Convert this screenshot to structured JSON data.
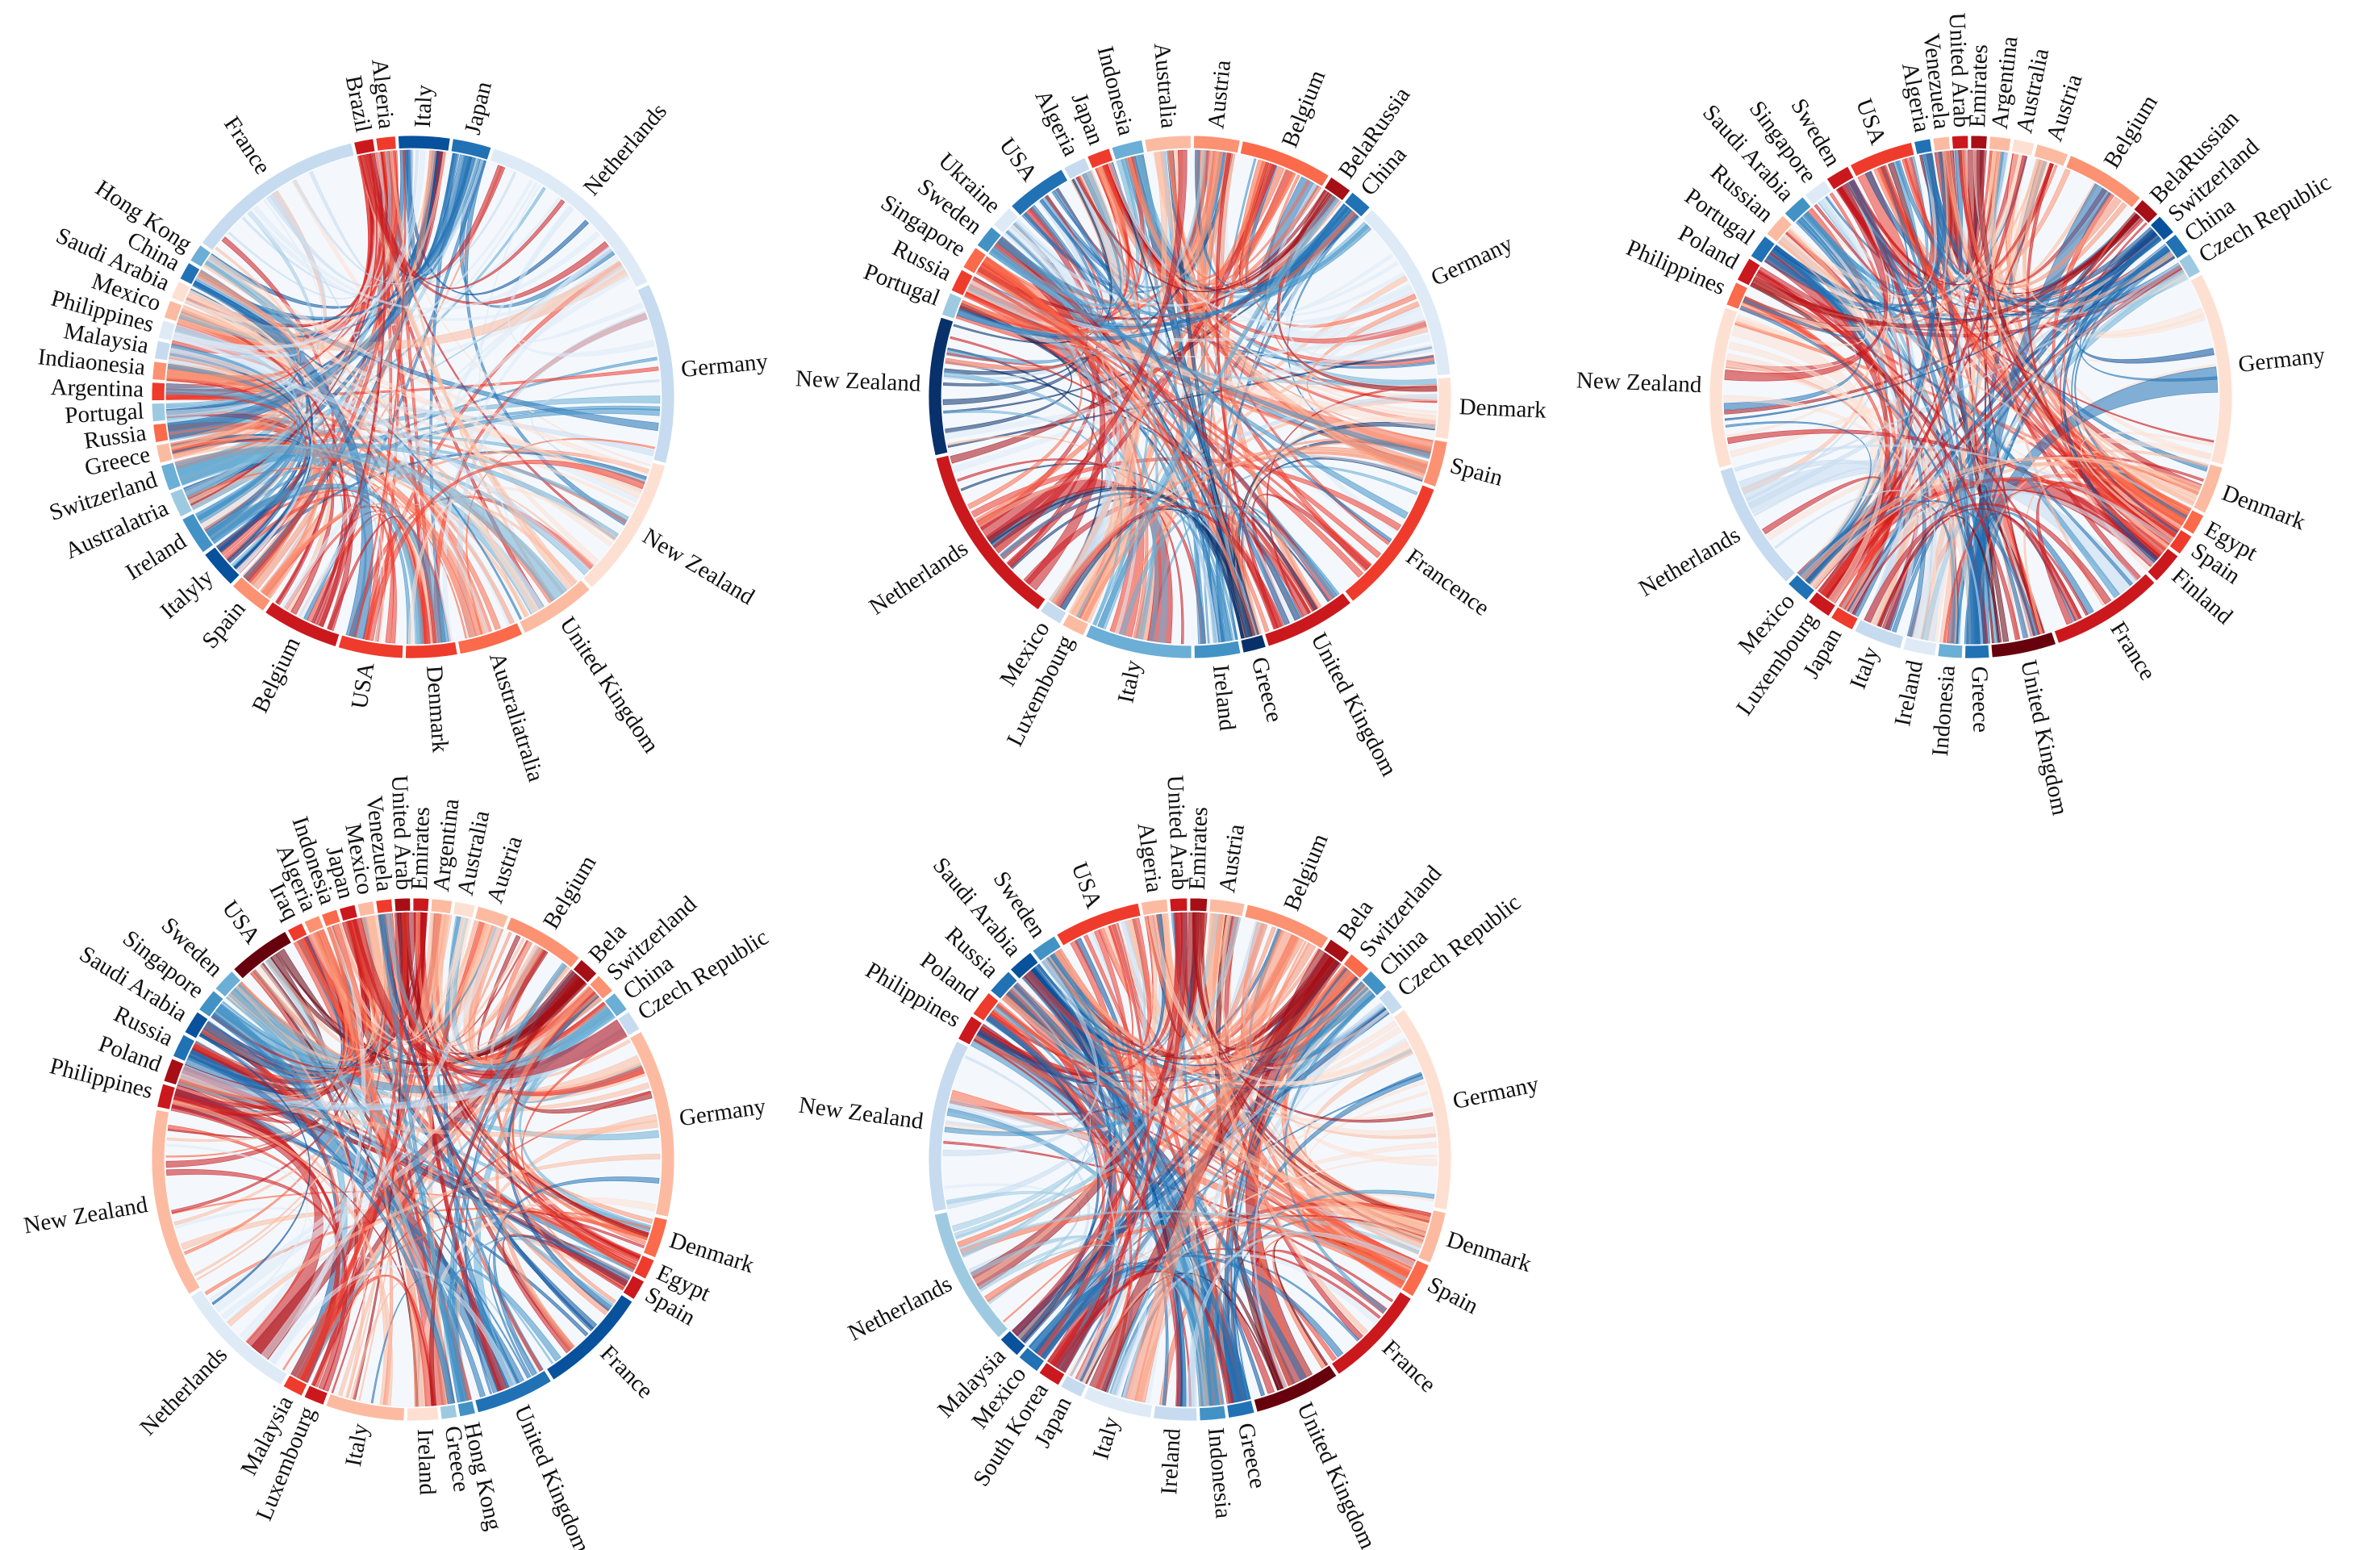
{
  "palette": {
    "blues": [
      "#08306b",
      "#08519c",
      "#2171b5",
      "#4292c6",
      "#6baed6",
      "#9ecae1",
      "#c6dbef",
      "#deebf7"
    ],
    "reds": [
      "#67000d",
      "#a50f15",
      "#cb181d",
      "#ef3b2c",
      "#fb6a4a",
      "#fc9272",
      "#fcbba1",
      "#fee0d2"
    ]
  },
  "diagrams": [
    {
      "name": "chord-diagram-1",
      "sectors": [
        {
          "label": "Netherlands",
          "size": 16,
          "color": "#deebf7"
        },
        {
          "label": "Germany",
          "size": 14,
          "color": "#c6dbef"
        },
        {
          "label": "New Zealand",
          "size": 11,
          "color": "#fee0d2"
        },
        {
          "label": "United Kingdom",
          "size": 6,
          "color": "#fcbba1"
        },
        {
          "label": "Australiatralia",
          "size": 5,
          "color": "#fb6a4a"
        },
        {
          "label": "Denmark",
          "size": 4,
          "color": "#ef3b2c"
        },
        {
          "label": "USA",
          "size": 5,
          "color": "#ef3b2c"
        },
        {
          "label": "Belgium",
          "size": 6,
          "color": "#cb181d"
        },
        {
          "label": "Spain",
          "size": 3,
          "color": "#fc9272"
        },
        {
          "label": "Italyly",
          "size": 3,
          "color": "#08519c"
        },
        {
          "label": "Ireland",
          "size": 3,
          "color": "#4292c6"
        },
        {
          "label": "Australatria",
          "size": 2,
          "color": "#9ecae1"
        },
        {
          "label": "Switzerland",
          "size": 2,
          "color": "#6baed6"
        },
        {
          "label": "Greece",
          "size": 1.4,
          "color": "#fcbba1"
        },
        {
          "label": "Russia",
          "size": 1.4,
          "color": "#fb6a4a"
        },
        {
          "label": "Portugal",
          "size": 1.4,
          "color": "#9ecae1"
        },
        {
          "label": "Argentina",
          "size": 1.4,
          "color": "#ef3b2c"
        },
        {
          "label": "Indiaonesia",
          "size": 1.4,
          "color": "#fc9272"
        },
        {
          "label": "Malaysia",
          "size": 1.4,
          "color": "#c6dbef"
        },
        {
          "label": "Philippines",
          "size": 1.4,
          "color": "#deebf7"
        },
        {
          "label": "Mexico",
          "size": 1.4,
          "color": "#fcbba1"
        },
        {
          "label": "Saudi Arabia",
          "size": 1.4,
          "color": "#fee0d2"
        },
        {
          "label": "China",
          "size": 1.4,
          "color": "#2171b5"
        },
        {
          "label": "Hong Kong",
          "size": 1.4,
          "color": "#6baed6"
        },
        {
          "label": "France",
          "size": 14,
          "color": "#c6dbef"
        },
        {
          "label": "Brazil",
          "size": 1.5,
          "color": "#cb181d"
        },
        {
          "label": "Algeria",
          "size": 1.5,
          "color": "#ef3b2c"
        },
        {
          "label": "Italy",
          "size": 4,
          "color": "#08519c"
        },
        {
          "label": "Japan",
          "size": 3,
          "color": "#2171b5"
        }
      ]
    },
    {
      "name": "chord-diagram-2",
      "sectors": [
        {
          "label": "Australia",
          "size": 3,
          "color": "#fcbba1"
        },
        {
          "label": "Austria",
          "size": 3,
          "color": "#fc9272"
        },
        {
          "label": "Belgium",
          "size": 6,
          "color": "#fb6a4a"
        },
        {
          "label": "BelaRussia",
          "size": 1.5,
          "color": "#a50f15"
        },
        {
          "label": "China",
          "size": 1.5,
          "color": "#2171b5"
        },
        {
          "label": "Germany",
          "size": 12,
          "color": "#deebf7"
        },
        {
          "label": "Denmark",
          "size": 4,
          "color": "#fee0d2"
        },
        {
          "label": "Spain",
          "size": 3,
          "color": "#fc9272"
        },
        {
          "label": "Francence",
          "size": 9,
          "color": "#ef3b2c"
        },
        {
          "label": "United Kingdom",
          "size": 6,
          "color": "#cb181d"
        },
        {
          "label": "Greece",
          "size": 1.5,
          "color": "#08306b"
        },
        {
          "label": "Ireland",
          "size": 3,
          "color": "#4292c6"
        },
        {
          "label": "Italy",
          "size": 7,
          "color": "#6baed6"
        },
        {
          "label": "Luxembourg",
          "size": 1.5,
          "color": "#fcbba1"
        },
        {
          "label": "Mexico",
          "size": 1.5,
          "color": "#c6dbef"
        },
        {
          "label": "Netherlands",
          "size": 12,
          "color": "#cb181d"
        },
        {
          "label": "New Zealand",
          "size": 9,
          "color": "#08306b"
        },
        {
          "label": "Portugal",
          "size": 1.5,
          "color": "#9ecae1"
        },
        {
          "label": "Russia",
          "size": 1.5,
          "color": "#ef3b2c"
        },
        {
          "label": "Singapore",
          "size": 1.5,
          "color": "#fb6a4a"
        },
        {
          "label": "Sweden",
          "size": 1.5,
          "color": "#4292c6"
        },
        {
          "label": "Ukraine",
          "size": 1.5,
          "color": "#deebf7"
        },
        {
          "label": "USA",
          "size": 4,
          "color": "#2171b5"
        },
        {
          "label": "Algeria",
          "size": 1.5,
          "color": "#c6dbef"
        },
        {
          "label": "Japan",
          "size": 1.5,
          "color": "#ef3b2c"
        },
        {
          "label": "Indonesia",
          "size": 2,
          "color": "#6baed6"
        }
      ]
    },
    {
      "name": "chord-diagram-3",
      "sectors": [
        {
          "label": "Emirates",
          "size": 1,
          "color": "#a50f15"
        },
        {
          "label": "Argentina",
          "size": 1.3,
          "color": "#fcbba1"
        },
        {
          "label": "Australia",
          "size": 1.3,
          "color": "#fee0d2"
        },
        {
          "label": "Austria",
          "size": 2,
          "color": "#fcbba1"
        },
        {
          "label": "Belgium",
          "size": 5,
          "color": "#fc9272"
        },
        {
          "label": "BelaRussian",
          "size": 1.3,
          "color": "#a50f15"
        },
        {
          "label": "Switzerland",
          "size": 1.3,
          "color": "#08519c"
        },
        {
          "label": "China",
          "size": 1.3,
          "color": "#2171b5"
        },
        {
          "label": "Czech Republic",
          "size": 1.3,
          "color": "#9ecae1"
        },
        {
          "label": "Germany",
          "size": 12,
          "color": "#fee0d2"
        },
        {
          "label": "Denmark",
          "size": 3,
          "color": "#fcbba1"
        },
        {
          "label": "Egypt",
          "size": 1.3,
          "color": "#fb6a4a"
        },
        {
          "label": "Spain",
          "size": 1.3,
          "color": "#ef3b2c"
        },
        {
          "label": "Finland",
          "size": 2,
          "color": "#cb181d"
        },
        {
          "label": "France",
          "size": 7,
          "color": "#cb181d"
        },
        {
          "label": "United Kingdom",
          "size": 4,
          "color": "#67000d"
        },
        {
          "label": "Greece",
          "size": 1.5,
          "color": "#2171b5"
        },
        {
          "label": "Indonesia",
          "size": 1.5,
          "color": "#6baed6"
        },
        {
          "label": "Ireland",
          "size": 2,
          "color": "#deebf7"
        },
        {
          "label": "Italy",
          "size": 3,
          "color": "#c6dbef"
        },
        {
          "label": "Japan",
          "size": 1.5,
          "color": "#ef3b2c"
        },
        {
          "label": "Luxembourg",
          "size": 1.5,
          "color": "#cb181d"
        },
        {
          "label": "Mexico",
          "size": 1.5,
          "color": "#2171b5"
        },
        {
          "label": "Netherlands",
          "size": 8,
          "color": "#c6dbef"
        },
        {
          "label": "New Zealand",
          "size": 10,
          "color": "#fee0d2"
        },
        {
          "label": "Philippines",
          "size": 1.5,
          "color": "#fb6a4a"
        },
        {
          "label": "Poland",
          "size": 1.5,
          "color": "#cb181d"
        },
        {
          "label": "Portugal",
          "size": 1.5,
          "color": "#2171b5"
        },
        {
          "label": "Russian",
          "size": 1.5,
          "color": "#fcbba1"
        },
        {
          "label": "Saudi Arabia",
          "size": 1.5,
          "color": "#4292c6"
        },
        {
          "label": "Singapore",
          "size": 1.5,
          "color": "#deebf7"
        },
        {
          "label": "Sweden",
          "size": 1.5,
          "color": "#cb181d"
        },
        {
          "label": "USA",
          "size": 4,
          "color": "#ef3b2c"
        },
        {
          "label": "Algeria",
          "size": 1,
          "color": "#2171b5"
        },
        {
          "label": "Venezuela",
          "size": 1,
          "color": "#fcbba1"
        },
        {
          "label": "United Arab",
          "size": 1,
          "color": "#cb181d"
        }
      ]
    },
    {
      "name": "chord-diagram-4",
      "sectors": [
        {
          "label": "Emirates",
          "size": 1,
          "color": "#cb181d"
        },
        {
          "label": "Argentina",
          "size": 1.3,
          "color": "#fcbba1"
        },
        {
          "label": "Australia",
          "size": 1.3,
          "color": "#fee0d2"
        },
        {
          "label": "Austria",
          "size": 2,
          "color": "#fcbba1"
        },
        {
          "label": "Belgium",
          "size": 5,
          "color": "#fc9272"
        },
        {
          "label": "Bela",
          "size": 1.3,
          "color": "#a50f15"
        },
        {
          "label": "Switzerland",
          "size": 1.3,
          "color": "#fc9272"
        },
        {
          "label": "China",
          "size": 1.3,
          "color": "#6baed6"
        },
        {
          "label": "Czech Republic",
          "size": 1.3,
          "color": "#c6dbef"
        },
        {
          "label": "Germany",
          "size": 12,
          "color": "#fcbba1"
        },
        {
          "label": "Denmark",
          "size": 2.5,
          "color": "#fb6a4a"
        },
        {
          "label": "Egypt",
          "size": 1.3,
          "color": "#ef3b2c"
        },
        {
          "label": "Spain",
          "size": 1.3,
          "color": "#cb181d"
        },
        {
          "label": "France",
          "size": 7,
          "color": "#08519c"
        },
        {
          "label": "United Kingdom",
          "size": 5,
          "color": "#2171b5"
        },
        {
          "label": "Hong Kong",
          "size": 1,
          "color": "#4292c6"
        },
        {
          "label": "Greece",
          "size": 1,
          "color": "#9ecae1"
        },
        {
          "label": "Ireland",
          "size": 2,
          "color": "#fee0d2"
        },
        {
          "label": "Italy",
          "size": 5,
          "color": "#fcbba1"
        },
        {
          "label": "Luxembourg",
          "size": 1.3,
          "color": "#cb181d"
        },
        {
          "label": "Malaysia",
          "size": 1.3,
          "color": "#ef3b2c"
        },
        {
          "label": "Netherlands",
          "size": 8,
          "color": "#deebf7"
        },
        {
          "label": "New Zealand",
          "size": 12,
          "color": "#fcbba1"
        },
        {
          "label": "Philippines",
          "size": 1.5,
          "color": "#cb181d"
        },
        {
          "label": "Poland",
          "size": 1.5,
          "color": "#a50f15"
        },
        {
          "label": "Russia",
          "size": 1.5,
          "color": "#2171b5"
        },
        {
          "label": "Saudi Arabia",
          "size": 1.5,
          "color": "#08519c"
        },
        {
          "label": "Singapore",
          "size": 1.5,
          "color": "#4292c6"
        },
        {
          "label": "Sweden",
          "size": 1.5,
          "color": "#6baed6"
        },
        {
          "label": "USA",
          "size": 4,
          "color": "#67000d"
        },
        {
          "label": "Iraq",
          "size": 1,
          "color": "#ef3b2c"
        },
        {
          "label": "Algeria",
          "size": 1,
          "color": "#fc9272"
        },
        {
          "label": "Indonesia",
          "size": 1,
          "color": "#fb6a4a"
        },
        {
          "label": "Japan",
          "size": 1,
          "color": "#cb181d"
        },
        {
          "label": "Mexico",
          "size": 1,
          "color": "#fcbba1"
        },
        {
          "label": "Venezuela",
          "size": 1,
          "color": "#ef3b2c"
        },
        {
          "label": "United Arab",
          "size": 1,
          "color": "#a50f15"
        }
      ]
    },
    {
      "name": "chord-diagram-5",
      "sectors": [
        {
          "label": "Emirates",
          "size": 1,
          "color": "#a50f15"
        },
        {
          "label": "Austria",
          "size": 2,
          "color": "#fcbba1"
        },
        {
          "label": "Belgium",
          "size": 5,
          "color": "#fc9272"
        },
        {
          "label": "Bela",
          "size": 1.3,
          "color": "#a50f15"
        },
        {
          "label": "Switzerland",
          "size": 1.3,
          "color": "#fb6a4a"
        },
        {
          "label": "China",
          "size": 1.3,
          "color": "#4292c6"
        },
        {
          "label": "Czech Republic",
          "size": 1.3,
          "color": "#c6dbef"
        },
        {
          "label": "Germany",
          "size": 12,
          "color": "#fee0d2"
        },
        {
          "label": "Denmark",
          "size": 3,
          "color": "#fcbba1"
        },
        {
          "label": "Spain",
          "size": 2,
          "color": "#fb6a4a"
        },
        {
          "label": "France",
          "size": 6,
          "color": "#cb181d"
        },
        {
          "label": "United Kingdom",
          "size": 5,
          "color": "#67000d"
        },
        {
          "label": "Greece",
          "size": 1.5,
          "color": "#2171b5"
        },
        {
          "label": "Indonesia",
          "size": 1.5,
          "color": "#4292c6"
        },
        {
          "label": "Ireland",
          "size": 2.5,
          "color": "#c6dbef"
        },
        {
          "label": "Italy",
          "size": 4,
          "color": "#deebf7"
        },
        {
          "label": "Japan",
          "size": 1.3,
          "color": "#c6dbef"
        },
        {
          "label": "South Korea",
          "size": 1.3,
          "color": "#cb181d"
        },
        {
          "label": "Mexico",
          "size": 1.3,
          "color": "#2171b5"
        },
        {
          "label": "Malaysia",
          "size": 1.3,
          "color": "#08519c"
        },
        {
          "label": "Netherlands",
          "size": 8,
          "color": "#9ecae1"
        },
        {
          "label": "New Zealand",
          "size": 10,
          "color": "#c6dbef"
        },
        {
          "label": "Philippines",
          "size": 1.5,
          "color": "#cb181d"
        },
        {
          "label": "Poland",
          "size": 1.5,
          "color": "#ef3b2c"
        },
        {
          "label": "Russia",
          "size": 1.5,
          "color": "#2171b5"
        },
        {
          "label": "Saudi Arabia",
          "size": 1.5,
          "color": "#08519c"
        },
        {
          "label": "Sweden",
          "size": 1.5,
          "color": "#4292c6"
        },
        {
          "label": "USA",
          "size": 5,
          "color": "#ef3b2c"
        },
        {
          "label": "Algeria",
          "size": 1.5,
          "color": "#fcbba1"
        },
        {
          "label": "United Arab",
          "size": 1,
          "color": "#cb181d"
        }
      ]
    }
  ]
}
